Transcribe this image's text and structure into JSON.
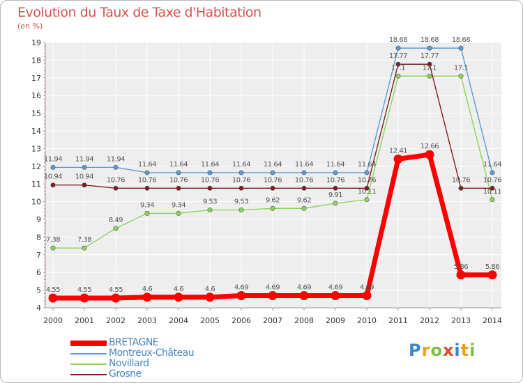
{
  "header": {
    "title": "Evolution du Taux de Taxe d'Habitation",
    "subtitle": "(en %)"
  },
  "logo": {
    "text": "Proxiti",
    "letters": [
      {
        "char": "P",
        "color": "#3a86c8"
      },
      {
        "char": "r",
        "color": "#e8a21a"
      },
      {
        "char": "o",
        "color": "#7bbf3f"
      },
      {
        "char": "x",
        "color": "#e04b2c"
      },
      {
        "char": "i",
        "color": "#3a86c8"
      },
      {
        "char": "t",
        "color": "#e8a21a"
      },
      {
        "char": "i",
        "color": "#7bbf3f"
      }
    ]
  },
  "chart_data": {
    "type": "line",
    "x": [
      "2000",
      "2001",
      "2002",
      "2003",
      "2004",
      "2005",
      "2006",
      "2007",
      "2008",
      "2009",
      "2010",
      "2011",
      "2012",
      "2013",
      "2014"
    ],
    "ylim": [
      4,
      19
    ],
    "yticks": [
      4,
      5,
      6,
      7,
      8,
      9,
      10,
      11,
      12,
      13,
      14,
      15,
      16,
      17,
      18,
      19
    ],
    "grid": true,
    "legend_position": "bottom-left",
    "series": [
      {
        "name": "BRETAGNE",
        "color": "#ff0000",
        "values": [
          4.55,
          4.55,
          4.55,
          4.6,
          4.6,
          4.6,
          4.69,
          4.69,
          4.69,
          4.69,
          4.69,
          12.41,
          12.66,
          5.86,
          5.86
        ],
        "labels": [
          "4.55",
          "4.55",
          "4.55",
          "4.6",
          "4.6",
          "4.6",
          "4.69",
          "4.69",
          "4.69",
          "4.69",
          "4.69",
          "12.41",
          "12.66",
          "5.86",
          "5.86"
        ]
      },
      {
        "name": "Montreux-Château",
        "color": "#5b9bd5",
        "values": [
          11.94,
          11.94,
          11.94,
          11.64,
          11.64,
          11.64,
          11.64,
          11.64,
          11.64,
          11.64,
          11.64,
          18.68,
          18.68,
          18.68,
          11.64
        ],
        "labels": [
          "11.94",
          "11.94",
          "11.94",
          "11.64",
          "11.64",
          "11.64",
          "11.64",
          "11.64",
          "11.64",
          "11.64",
          "11.64",
          "18.68",
          "18.68",
          "18.68",
          "11.64"
        ]
      },
      {
        "name": "Novillard",
        "color": "#8fd45c",
        "values": [
          7.38,
          7.38,
          8.49,
          9.34,
          9.34,
          9.53,
          9.53,
          9.62,
          9.62,
          9.91,
          10.11,
          17.1,
          17.1,
          17.1,
          10.11
        ],
        "labels": [
          "7.38",
          "7.38",
          "8.49",
          "9.34",
          "9.34",
          "9.53",
          "9.53",
          "9.62",
          "9.62",
          "9.91",
          "10.11",
          "17.1",
          "17.1",
          "17.1",
          "10.11"
        ]
      },
      {
        "name": "Grosne",
        "color": "#7a1f1f",
        "values": [
          10.94,
          10.94,
          10.76,
          10.76,
          10.76,
          10.76,
          10.76,
          10.76,
          10.76,
          10.76,
          10.76,
          17.77,
          17.77,
          10.76,
          10.76
        ],
        "labels": [
          "10.94",
          "10.94",
          "10.76",
          "10.76",
          "10.76",
          "10.76",
          "10.76",
          "10.76",
          "10.76",
          "10.76",
          "10.76",
          "17.77",
          "17.77",
          "10.76",
          "10.76"
        ]
      }
    ]
  }
}
